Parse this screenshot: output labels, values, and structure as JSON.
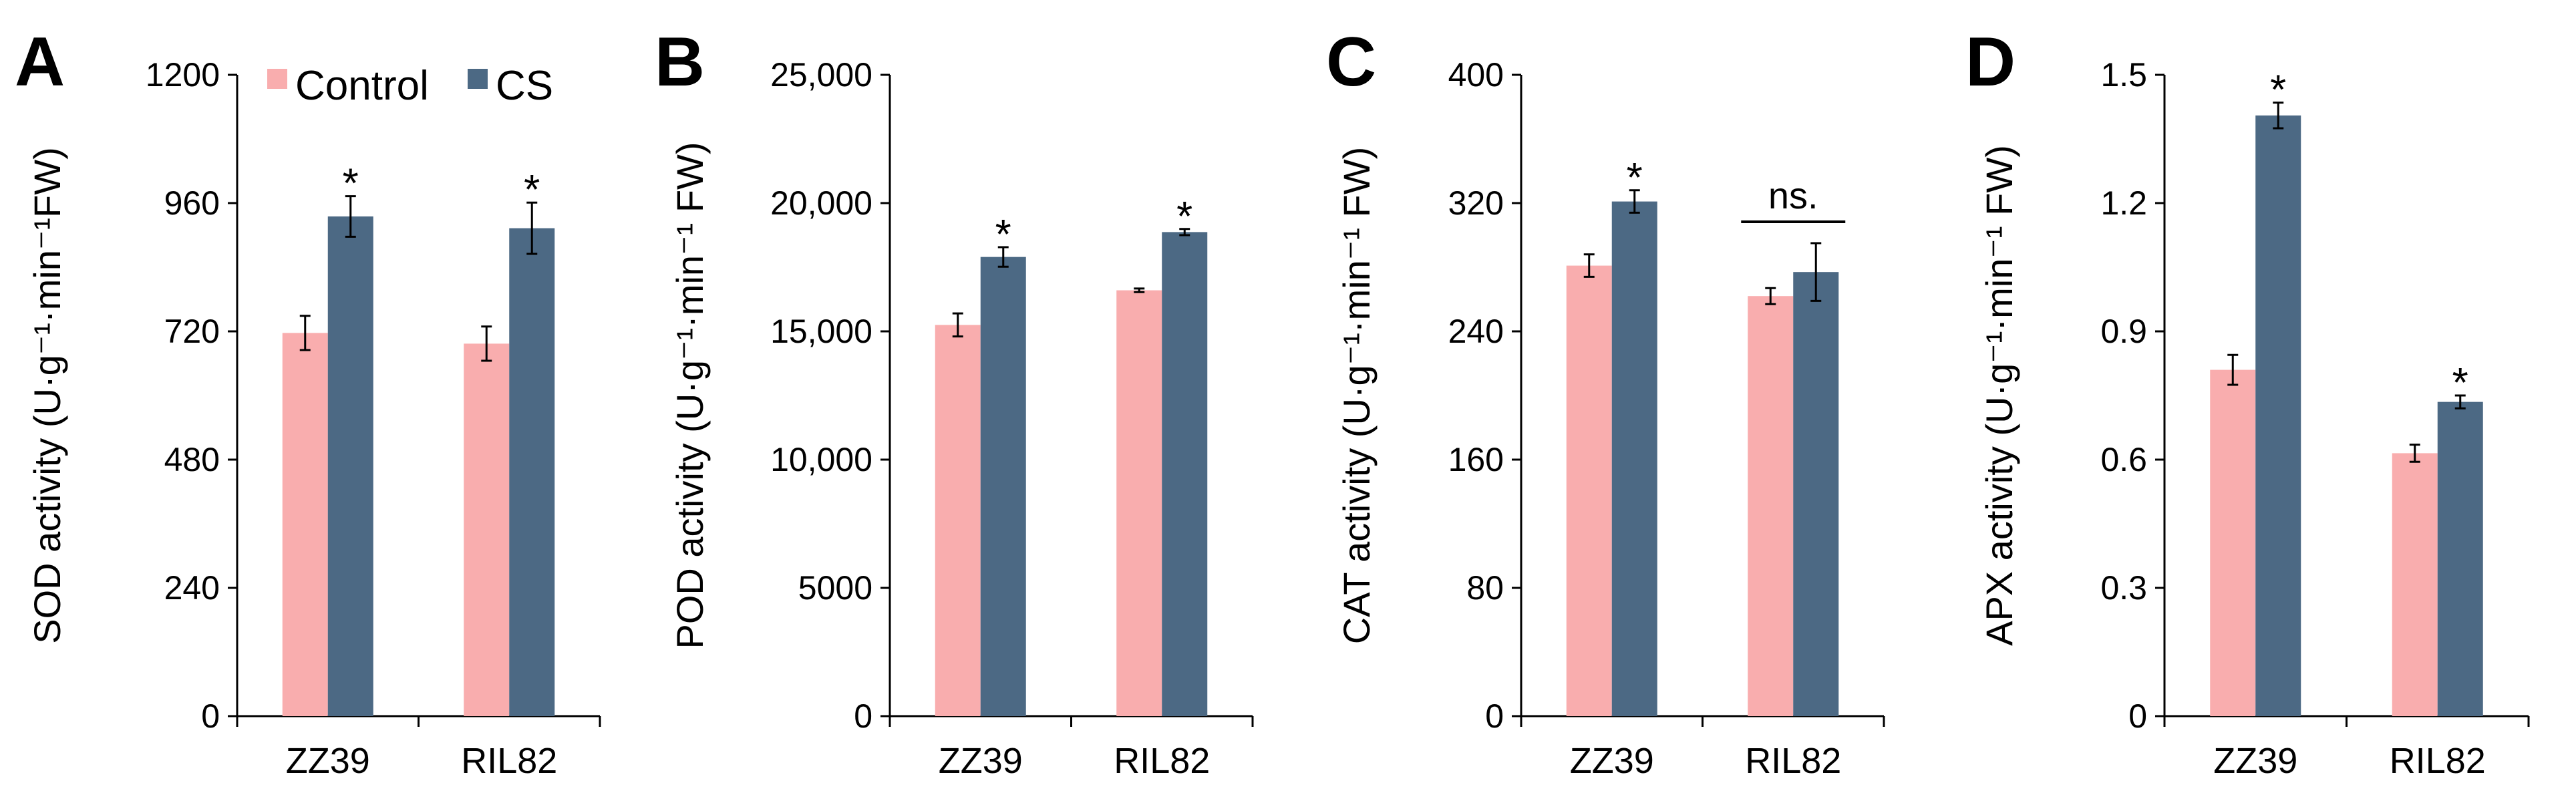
{
  "colors": {
    "control": "#F9ADAE",
    "cs": "#4C6984",
    "axis": "#000000",
    "errorbar": "#000000"
  },
  "legend": {
    "items": [
      {
        "key": "control",
        "label": "Control"
      },
      {
        "key": "cs",
        "label": "CS"
      }
    ],
    "placement": "top"
  },
  "chart_data": [
    {
      "type": "bar",
      "panel": "A",
      "ylabel": "SOD activity (U·g⁻¹·min⁻¹FW)",
      "ylim": [
        0,
        1200
      ],
      "yticks": [
        "0",
        "240",
        "480",
        "720",
        "960",
        "1200"
      ],
      "categories": [
        "ZZ39",
        "RIL82"
      ],
      "series": [
        {
          "name": "Control",
          "values": [
            717,
            697
          ],
          "errors": [
            32,
            32
          ]
        },
        {
          "name": "CS",
          "values": [
            935,
            913
          ],
          "errors": [
            38,
            48
          ]
        }
      ],
      "annotations": [
        {
          "category": "ZZ39",
          "series": "CS",
          "text": "*"
        },
        {
          "category": "RIL82",
          "series": "CS",
          "text": "*"
        }
      ],
      "grid": false
    },
    {
      "type": "bar",
      "panel": "B",
      "ylabel": "POD activity (U·g⁻¹·min⁻¹ FW)",
      "ylim": [
        0,
        25000
      ],
      "yticks": [
        "0",
        "5000",
        "10,000",
        "15,000",
        "20,000",
        "25,000"
      ],
      "categories": [
        "ZZ39",
        "RIL82"
      ],
      "series": [
        {
          "name": "Control",
          "values": [
            15250,
            16600
          ],
          "errors": [
            450,
            70
          ]
        },
        {
          "name": "CS",
          "values": [
            17900,
            18870
          ],
          "errors": [
            380,
            120
          ]
        }
      ],
      "annotations": [
        {
          "category": "ZZ39",
          "series": "CS",
          "text": "*"
        },
        {
          "category": "RIL82",
          "series": "CS",
          "text": "*"
        }
      ],
      "grid": false
    },
    {
      "type": "bar",
      "panel": "C",
      "ylabel": "CAT activity (U·g⁻¹·min⁻¹ FW)",
      "ylim": [
        0,
        400
      ],
      "yticks": [
        "0",
        "80",
        "160",
        "240",
        "320",
        "400"
      ],
      "categories": [
        "ZZ39",
        "RIL82"
      ],
      "series": [
        {
          "name": "Control",
          "values": [
            281,
            262
          ],
          "errors": [
            7,
            5
          ]
        },
        {
          "name": "CS",
          "values": [
            321,
            277
          ],
          "errors": [
            7,
            18
          ]
        }
      ],
      "annotations": [
        {
          "category": "ZZ39",
          "series": "CS",
          "text": "*"
        },
        {
          "category": "RIL82",
          "text": "ns.",
          "bracket": true
        }
      ],
      "grid": false
    },
    {
      "type": "bar",
      "panel": "D",
      "ylabel": "APX activity (U·g⁻¹·min⁻¹ FW)",
      "ylim": [
        0,
        1.5
      ],
      "yticks": [
        "0",
        "0.3",
        "0.6",
        "0.9",
        "1.2",
        "1.5"
      ],
      "categories": [
        "ZZ39",
        "RIL82"
      ],
      "series": [
        {
          "name": "Control",
          "values": [
            0.81,
            0.615
          ],
          "errors": [
            0.035,
            0.02
          ]
        },
        {
          "name": "CS",
          "values": [
            1.405,
            0.735
          ],
          "errors": [
            0.03,
            0.015
          ]
        }
      ],
      "annotations": [
        {
          "category": "ZZ39",
          "series": "CS",
          "text": "*"
        },
        {
          "category": "RIL82",
          "series": "CS",
          "text": "*"
        }
      ],
      "grid": false
    }
  ]
}
